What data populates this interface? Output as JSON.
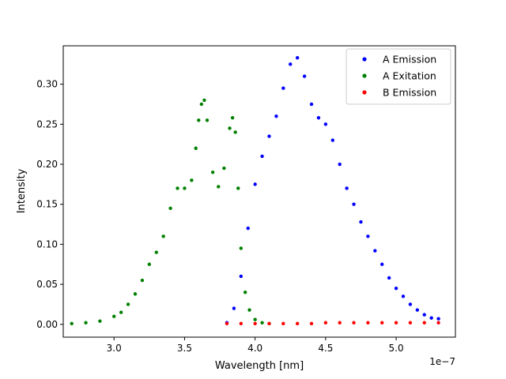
{
  "chart_data": {
    "type": "scatter",
    "title": "",
    "xlabel": "Wavelength [nm]",
    "ylabel": "Intensity",
    "x_offset_label": "1e−7",
    "xlim": [
      2.64,
      5.42
    ],
    "ylim": [
      -0.016,
      0.348
    ],
    "x_ticks": [
      3.0,
      3.5,
      4.0,
      4.5,
      5.0
    ],
    "x_tick_labels": [
      "3.0",
      "3.5",
      "4.0",
      "4.5",
      "5.0"
    ],
    "y_ticks": [
      0.0,
      0.05,
      0.1,
      0.15,
      0.2,
      0.25,
      0.3
    ],
    "y_tick_labels": [
      "0.00",
      "0.05",
      "0.10",
      "0.15",
      "0.20",
      "0.25",
      "0.30"
    ],
    "grid": false,
    "legend_position": "top-right",
    "series": [
      {
        "name": "A Emission",
        "color": "#0000ff",
        "x": [
          3.8,
          3.85,
          3.9,
          3.95,
          4.0,
          4.05,
          4.1,
          4.15,
          4.2,
          4.25,
          4.3,
          4.35,
          4.4,
          4.45,
          4.5,
          4.55,
          4.6,
          4.65,
          4.7,
          4.75,
          4.8,
          4.85,
          4.9,
          4.95,
          5.0,
          5.05,
          5.1,
          5.15,
          5.2,
          5.25,
          5.3
        ],
        "y": [
          0.002,
          0.02,
          0.06,
          0.12,
          0.175,
          0.21,
          0.235,
          0.26,
          0.295,
          0.325,
          0.333,
          0.31,
          0.275,
          0.258,
          0.25,
          0.23,
          0.2,
          0.17,
          0.15,
          0.128,
          0.11,
          0.092,
          0.075,
          0.058,
          0.045,
          0.035,
          0.025,
          0.018,
          0.012,
          0.008,
          0.007
        ]
      },
      {
        "name": "A Exitation",
        "color": "#008000",
        "x": [
          2.7,
          2.8,
          2.9,
          3.0,
          3.05,
          3.1,
          3.15,
          3.2,
          3.25,
          3.3,
          3.35,
          3.4,
          3.45,
          3.5,
          3.55,
          3.58,
          3.6,
          3.62,
          3.64,
          3.66,
          3.7,
          3.74,
          3.78,
          3.82,
          3.84,
          3.86,
          3.88,
          3.9,
          3.93,
          3.96,
          4.0,
          4.05,
          4.1
        ],
        "y": [
          0.001,
          0.002,
          0.004,
          0.01,
          0.015,
          0.025,
          0.038,
          0.055,
          0.075,
          0.09,
          0.11,
          0.145,
          0.17,
          0.17,
          0.18,
          0.22,
          0.255,
          0.275,
          0.28,
          0.255,
          0.19,
          0.172,
          0.195,
          0.245,
          0.258,
          0.24,
          0.17,
          0.095,
          0.04,
          0.018,
          0.006,
          0.002,
          0.001
        ]
      },
      {
        "name": "B Emission",
        "color": "#ff0000",
        "x": [
          3.8,
          3.9,
          4.0,
          4.1,
          4.2,
          4.3,
          4.4,
          4.5,
          4.6,
          4.7,
          4.8,
          4.9,
          5.0,
          5.1,
          5.2,
          5.3
        ],
        "y": [
          0.001,
          0.001,
          0.001,
          0.001,
          0.001,
          0.001,
          0.001,
          0.002,
          0.002,
          0.002,
          0.002,
          0.002,
          0.002,
          0.002,
          0.002,
          0.002
        ]
      }
    ]
  }
}
